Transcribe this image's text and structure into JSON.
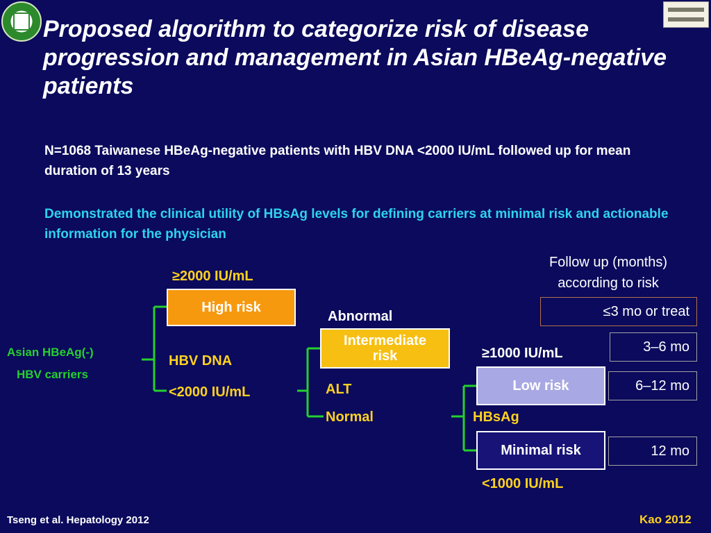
{
  "title": "Proposed algorithm to categorize risk of disease progression and management in Asian HBeAg-negative patients",
  "intro": {
    "line1": "N=1068 Taiwanese HBeAg-negative patients with HBV DNA <2000 IU/mL followed up for mean duration of 13 years",
    "line2": "Demonstrated the clinical utility of HBsAg levels for defining carriers at minimal risk and actionable information for the physician"
  },
  "flow": {
    "population_line1": "Asian HBeAg(-)",
    "population_line2": "HBV carriers",
    "dna_threshold_high": "≥2000 IU/mL",
    "dna_label": "HBV DNA",
    "dna_threshold_low": "<2000 IU/mL",
    "high_risk": "High risk",
    "alt_abnormal": "Abnormal",
    "alt_label": "ALT",
    "alt_normal": "Normal",
    "intermediate_line1": "Intermediate",
    "intermediate_line2": "risk",
    "hbsag_high": "≥1000 IU/mL",
    "hbsag_label": "HBsAg",
    "hbsag_low": "<1000 IU/mL",
    "low_risk": "Low risk",
    "minimal_risk": "Minimal risk"
  },
  "followup": {
    "header_line1": "Follow up (months)",
    "header_line2": "according to risk",
    "high": "≤3 mo or treat",
    "intermediate": "3–6 mo",
    "low": "6–12 mo",
    "minimal": "12 mo"
  },
  "footer": {
    "citation": "Tseng et al. Hepatology 2012",
    "credit": "Kao 2012"
  },
  "colors": {
    "background": "#0b0a5c",
    "high_risk": "#f7990f",
    "intermediate_risk": "#f7bf12",
    "low_risk": "#a8a8e4",
    "minimal_risk": "#171377",
    "connector": "#25d02e",
    "highlight_text": "#2fd3f0",
    "credit_text": "#ffd21f"
  }
}
